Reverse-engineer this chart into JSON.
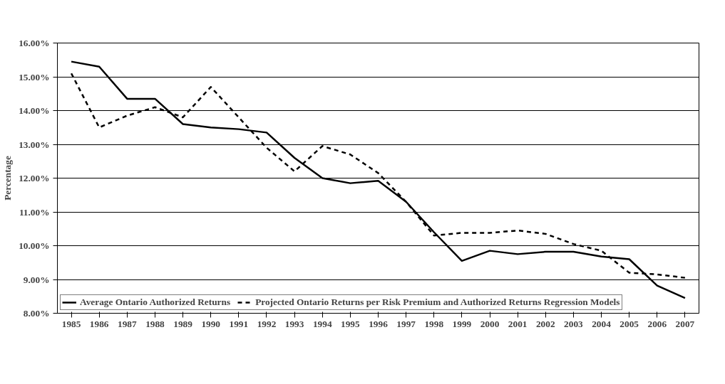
{
  "chart_data": {
    "type": "line",
    "ylabel": "Percentage",
    "categories": [
      "1985",
      "1986",
      "1987",
      "1988",
      "1989",
      "1990",
      "1991",
      "1992",
      "1993",
      "1994",
      "1995",
      "1996",
      "1997",
      "1998",
      "1999",
      "2000",
      "2001",
      "2002",
      "2003",
      "2004",
      "2005",
      "2006",
      "2007"
    ],
    "series": [
      {
        "name": "Average Ontario Authorized Returns",
        "color": "#000000",
        "line_style": "solid",
        "values": [
          15.45,
          15.3,
          14.35,
          14.35,
          13.6,
          13.5,
          13.45,
          13.35,
          12.6,
          12.0,
          11.85,
          11.92,
          11.3,
          10.4,
          9.55,
          9.85,
          9.75,
          9.82,
          9.82,
          9.68,
          9.6,
          8.82,
          8.45
        ]
      },
      {
        "name": "Projected Ontario Returns per Risk Premium and Authorized Returns Regression Models",
        "color": "#000000",
        "line_style": "dashed",
        "values": [
          15.1,
          13.5,
          13.85,
          14.1,
          13.8,
          14.7,
          13.8,
          12.9,
          12.2,
          12.95,
          12.7,
          12.15,
          11.3,
          10.3,
          10.38,
          10.38,
          10.45,
          10.35,
          10.05,
          9.85,
          9.2,
          9.15,
          9.05
        ]
      }
    ],
    "ylim": [
      8,
      16
    ],
    "yticks": [
      {
        "value": 8,
        "label": "8.00%"
      },
      {
        "value": 9,
        "label": "9.00%"
      },
      {
        "value": 10,
        "label": "10.00%"
      },
      {
        "value": 11,
        "label": "11.00%"
      },
      {
        "value": 12,
        "label": "12.00%"
      },
      {
        "value": 13,
        "label": "13.00%"
      },
      {
        "value": 14,
        "label": "14.00%"
      },
      {
        "value": 15,
        "label": "15.00%"
      },
      {
        "value": 16,
        "label": "16.00%"
      }
    ],
    "grid": "y",
    "legend": "bottom left",
    "marker": "none"
  }
}
